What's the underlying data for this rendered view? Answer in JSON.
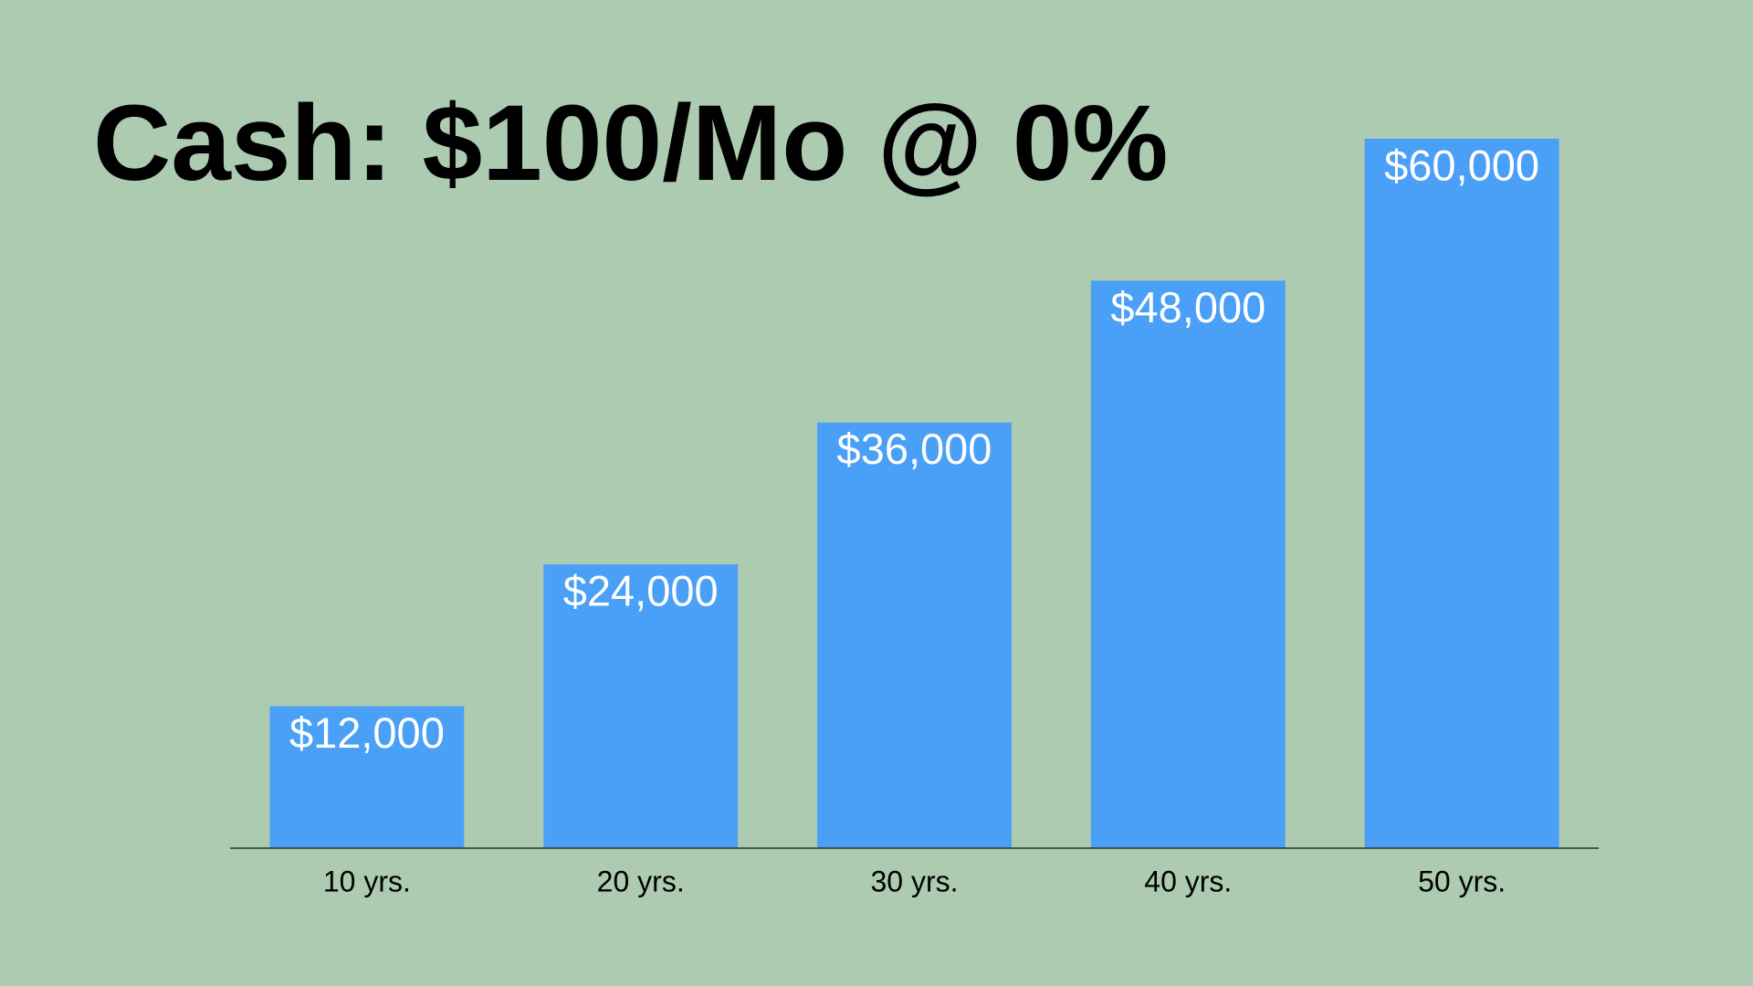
{
  "chart_data": {
    "type": "bar",
    "title": "Cash: $100/Mo @ 0%",
    "categories": [
      "10 yrs.",
      "20 yrs.",
      "30 yrs.",
      "40 yrs.",
      "50 yrs."
    ],
    "values": [
      12000,
      24000,
      36000,
      48000,
      60000
    ],
    "value_labels": [
      "$12,000",
      "$24,000",
      "$36,000",
      "$48,000",
      "$60,000"
    ],
    "color": "#4a9ff6",
    "ylim": [
      0,
      60000
    ]
  }
}
